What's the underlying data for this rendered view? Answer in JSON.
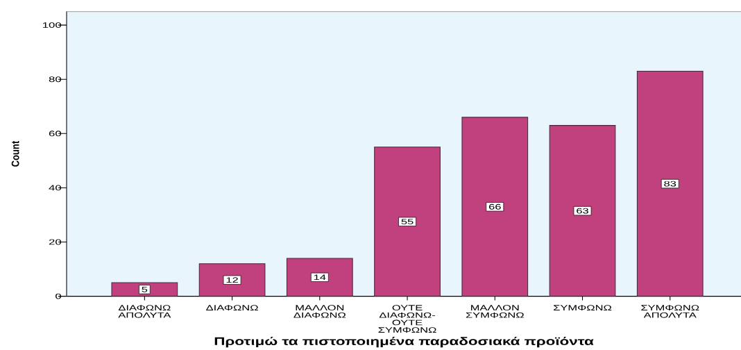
{
  "chart_data": {
    "type": "bar",
    "xlabel": "Προτιμώ τα πιστοποιημένα παραδοσιακά προϊόντα",
    "ylabel": "Count",
    "categories": [
      "ΔΙΑΦΩΝΩ ΑΠΟΛΥΤΑ",
      "ΔΙΑΦΩΝΩ",
      "ΜΑΛΛΟΝ ΔΙΑΦΩΝΩ",
      "ΟΥΤΕ ΔΙΑΦΩΝΩ-ΟΥΤΕ ΣΥΜΦΩΝΩ",
      "ΜΑΛΛΟΝ ΣΥΜΦΩΝΩ",
      "ΣΥΜΦΩΝΩ",
      "ΣΥΜΦΩΝΩ ΑΠΟΛΥΤΑ"
    ],
    "values": [
      5,
      12,
      14,
      55,
      66,
      63,
      83
    ],
    "color": "#c1407e",
    "ylim": [
      0,
      105
    ],
    "yticks": [
      0,
      20,
      40,
      60,
      80,
      100
    ],
    "data_labels": true
  }
}
